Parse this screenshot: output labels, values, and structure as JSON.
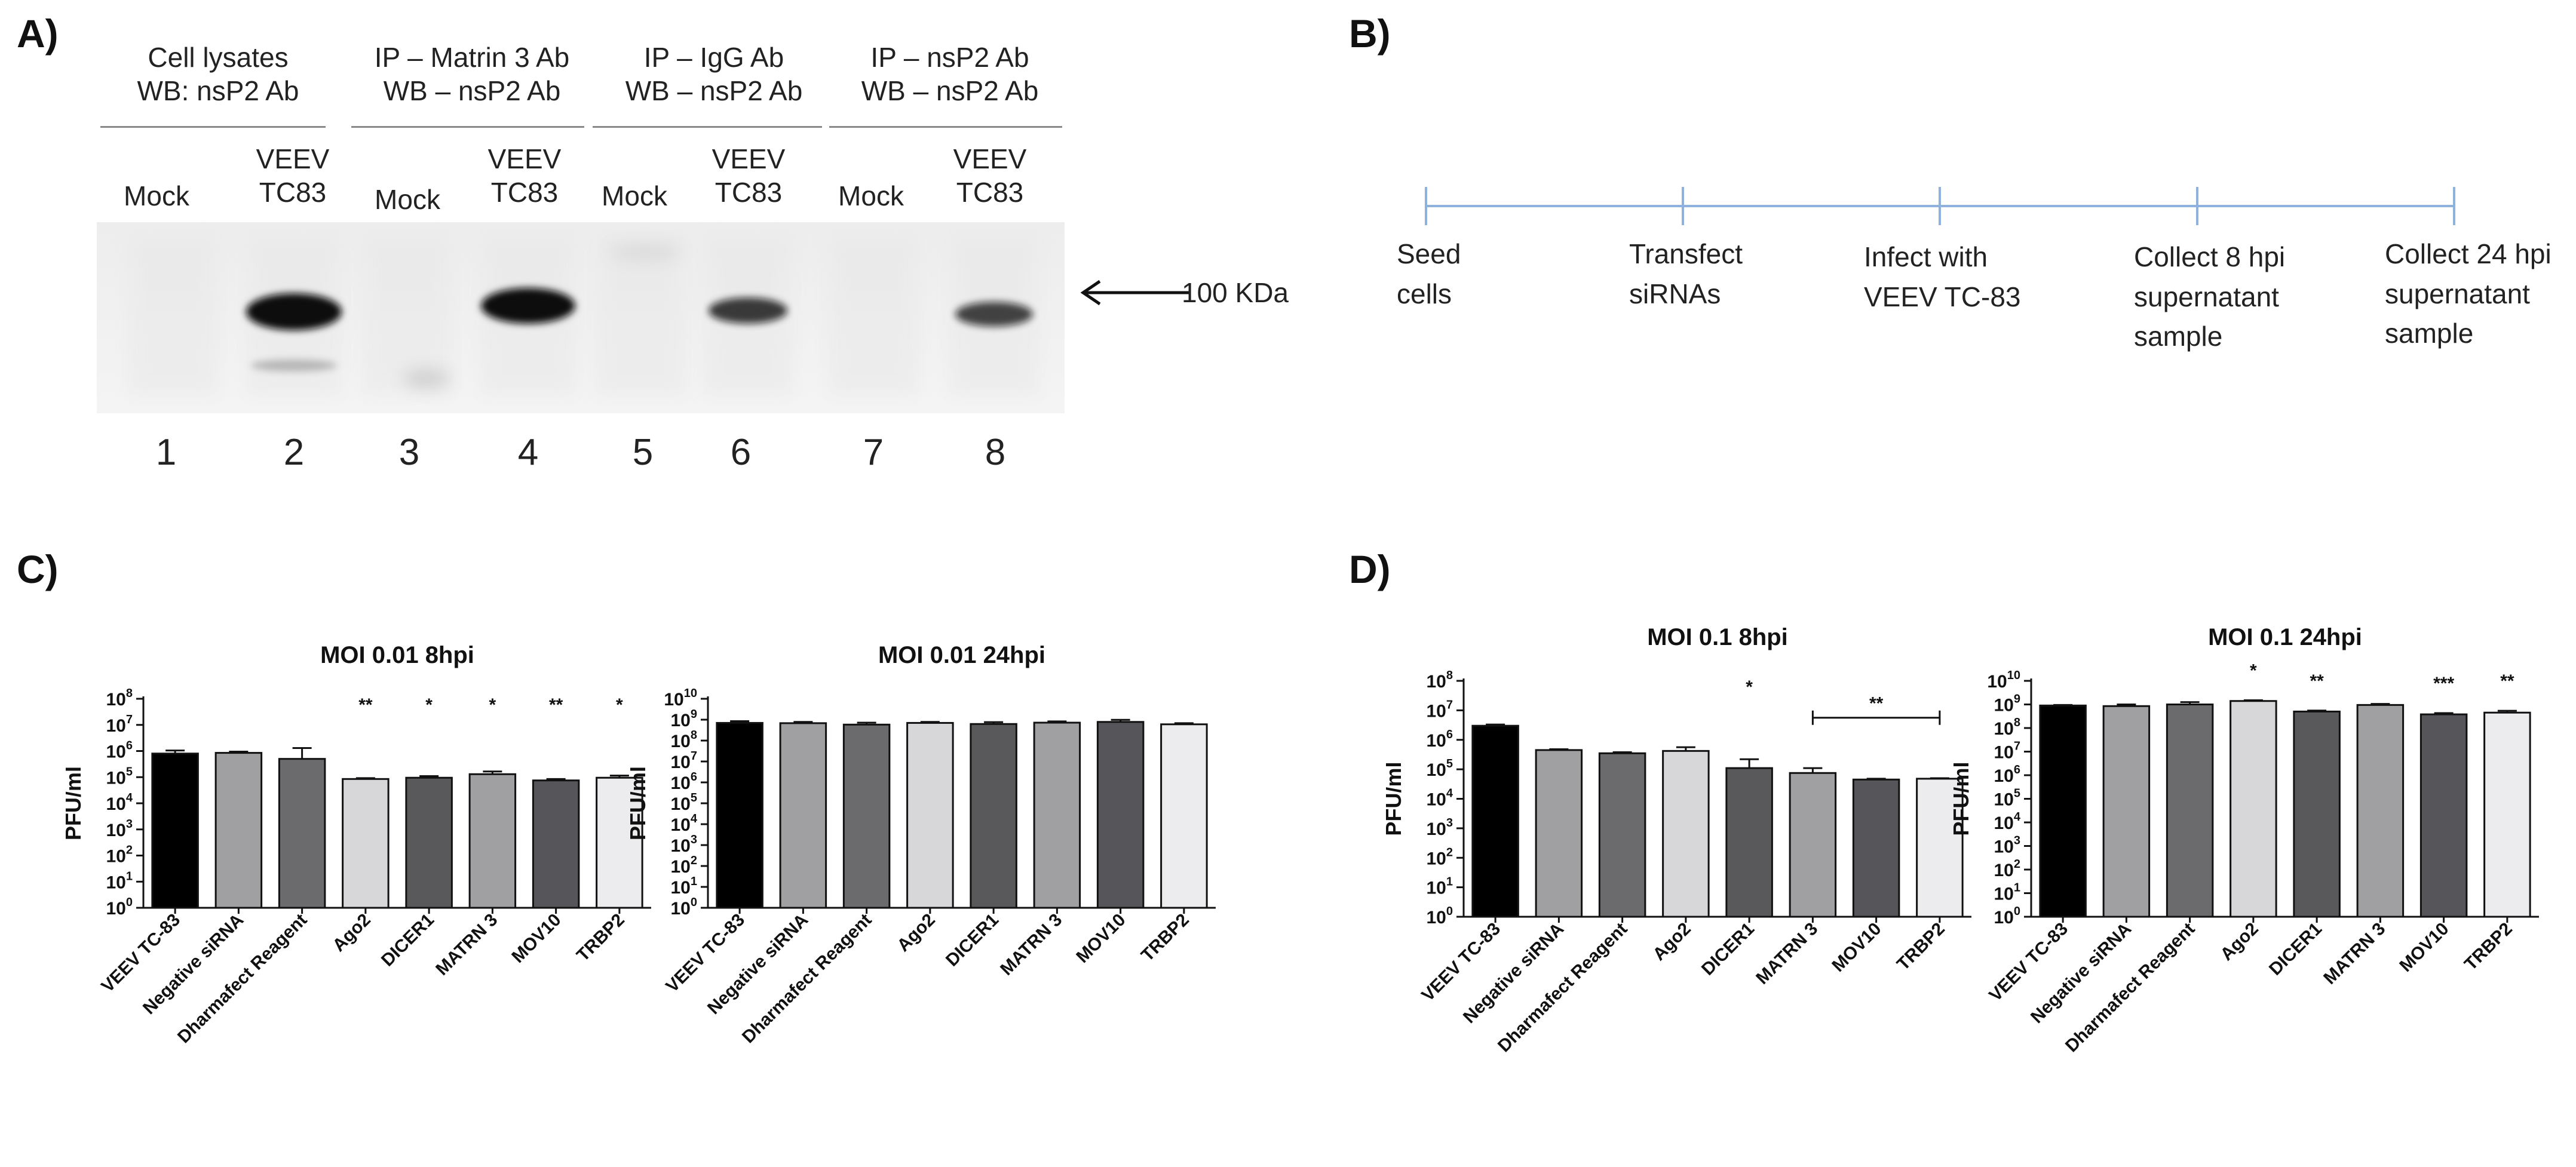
{
  "panels": {
    "a": "A)",
    "b": "B)",
    "c": "C)",
    "d": "D)"
  },
  "blot": {
    "groups": [
      {
        "line1": "Cell lysates",
        "line2": "WB: nsP2 Ab"
      },
      {
        "line1": "IP – Matrin 3 Ab",
        "line2": "WB – nsP2 Ab"
      },
      {
        "line1": "IP – IgG Ab",
        "line2": "WB – nsP2 Ab"
      },
      {
        "line1": "IP – nsP2 Ab",
        "line2": "WB – nsP2 Ab"
      }
    ],
    "lane_headers": [
      "Mock",
      "VEEV TC83",
      "Mock",
      "VEEV TC83",
      "Mock",
      "VEEV TC83",
      "Mock",
      "VEEV TC83"
    ],
    "mock_label": "Mock",
    "veev_line1": "VEEV",
    "veev_line2": "TC83",
    "lane_numbers": [
      "1",
      "2",
      "3",
      "4",
      "5",
      "6",
      "7",
      "8"
    ],
    "marker_label": "100 KDa",
    "band_intensity": [
      0,
      1.0,
      0,
      0.95,
      0,
      0.6,
      0,
      0.55
    ]
  },
  "timeline": {
    "steps": [
      {
        "line1": "Seed",
        "line2": "cells",
        "line3": ""
      },
      {
        "line1": "Transfect",
        "line2": "siRNAs",
        "line3": ""
      },
      {
        "line1": "Infect with",
        "line2": "VEEV TC-83",
        "line3": ""
      },
      {
        "line1": "Collect 8 hpi",
        "line2": "supernatant",
        "line3": "sample"
      },
      {
        "line1": "Collect 24 hpi",
        "line2": "supernatant",
        "line3": "sample"
      }
    ],
    "color": "#8fb1de"
  },
  "chart_data": [
    {
      "type": "bar",
      "title": "MOI 0.01 8hpi",
      "ylabel": "PFU/ml",
      "log_scale": true,
      "ylim_exp": [
        0,
        8
      ],
      "categories": [
        "VEEV TC-83",
        "Negative siRNA",
        "Dharmafect Reagent",
        "Ago2",
        "DICER1",
        "MATRN 3",
        "MOV10",
        "TRBP2"
      ],
      "values": [
        800000,
        850000,
        500000,
        85000,
        95000,
        130000,
        75000,
        95000
      ],
      "error_upper": [
        1050000,
        950000,
        1300000,
        92000,
        110000,
        165000,
        85000,
        115000
      ],
      "significance": [
        "",
        "",
        "",
        "**",
        "*",
        "*",
        "**",
        "*"
      ],
      "bracket": null
    },
    {
      "type": "bar",
      "title": "MOI 0.01 24hpi",
      "ylabel": "PFU/ml",
      "log_scale": true,
      "ylim_exp": [
        0,
        10
      ],
      "categories": [
        "VEEV TC-83",
        "Negative siRNA",
        "Dharmafect Reagent",
        "Ago2",
        "DICER1",
        "MATRN 3",
        "MOV10",
        "TRBP2"
      ],
      "values": [
        700000000,
        680000000,
        580000000,
        700000000,
        620000000,
        720000000,
        780000000,
        600000000
      ],
      "error_upper": [
        850000000,
        780000000,
        720000000,
        780000000,
        760000000,
        830000000,
        980000000,
        680000000
      ],
      "significance": [
        "",
        "",
        "",
        "",
        "",
        "",
        "",
        ""
      ],
      "bracket": null
    },
    {
      "type": "bar",
      "title": "MOI 0.1 8hpi",
      "ylabel": "PFU/ml",
      "log_scale": true,
      "ylim_exp": [
        0,
        8
      ],
      "categories": [
        "VEEV TC-83",
        "Negative siRNA",
        "Dharmafect Reagent",
        "Ago2",
        "DICER1",
        "MATRN 3",
        "MOV10",
        "TRBP2"
      ],
      "values": [
        3000000,
        450000,
        350000,
        420000,
        110000,
        75000,
        45000,
        48000
      ],
      "error_upper": [
        3300000,
        480000,
        380000,
        560000,
        220000,
        110000,
        48000,
        50000
      ],
      "significance": [
        "",
        "",
        "",
        "",
        "*",
        "",
        "",
        ""
      ],
      "bracket": {
        "from": 5,
        "to": 7,
        "label": "**",
        "level_exp": 6.75
      }
    },
    {
      "type": "bar",
      "title": "MOI 0.1 24hpi",
      "ylabel": "PFU/ml",
      "log_scale": true,
      "ylim_exp": [
        0,
        10
      ],
      "categories": [
        "VEEV TC-83",
        "Negative siRNA",
        "Dharmafect Reagent",
        "Ago2",
        "DICER1",
        "MATRN 3",
        "MOV10",
        "TRBP2"
      ],
      "values": [
        900000000,
        850000000,
        1000000000,
        1400000000,
        500000000,
        950000000,
        380000000,
        450000000
      ],
      "error_upper": [
        950000000,
        1000000000,
        1250000000,
        1500000000,
        550000000,
        1050000000,
        430000000,
        540000000
      ],
      "significance": [
        "",
        "",
        "",
        "*",
        "**",
        "",
        "***",
        "**"
      ],
      "bracket": null
    }
  ],
  "bar_colors": [
    "#000000",
    "#a0a0a3",
    "#6b6b6d",
    "#d7d7d9",
    "#59595b",
    "#a0a0a3",
    "#56565a",
    "#ececee"
  ]
}
